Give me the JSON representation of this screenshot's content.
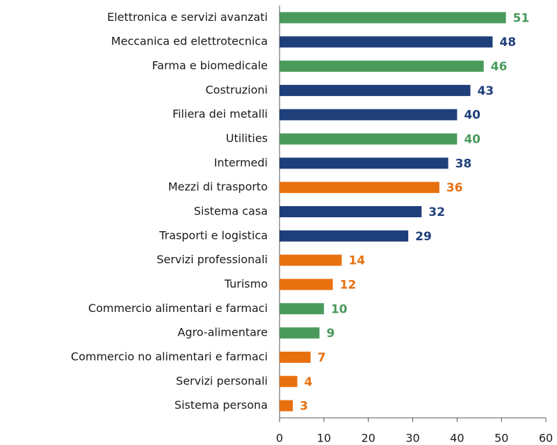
{
  "chart_data": {
    "type": "barh",
    "categories": [
      "Elettronica e servizi avanzati",
      "Meccanica ed elettrotecnica",
      "Farma e biomedicale",
      "Costruzioni",
      "Filiera dei metalli",
      "Utilities",
      "Intermedi",
      "Mezzi di trasporto",
      "Sistema casa",
      "Trasporti e logistica",
      "Servizi professionali",
      "Turismo",
      "Commercio alimentari e farmaci",
      "Agro-alimentare",
      "Commercio no alimentari e farmaci",
      "Servizi personali",
      "Sistema persona"
    ],
    "values": [
      51,
      48,
      46,
      43,
      40,
      40,
      38,
      36,
      32,
      29,
      14,
      12,
      10,
      9,
      7,
      4,
      3
    ],
    "colors": [
      "#4a9a5c",
      "#1f3f7a",
      "#4a9a5c",
      "#1f3f7a",
      "#1f3f7a",
      "#4a9a5c",
      "#1f3f7a",
      "#e8700f",
      "#1f3f7a",
      "#1f3f7a",
      "#e8700f",
      "#e8700f",
      "#4a9a5c",
      "#4a9a5c",
      "#e8700f",
      "#e8700f",
      "#e8700f"
    ],
    "xlim": [
      0,
      60
    ],
    "xticks": [
      0,
      10,
      20,
      30,
      40,
      50,
      60
    ]
  }
}
